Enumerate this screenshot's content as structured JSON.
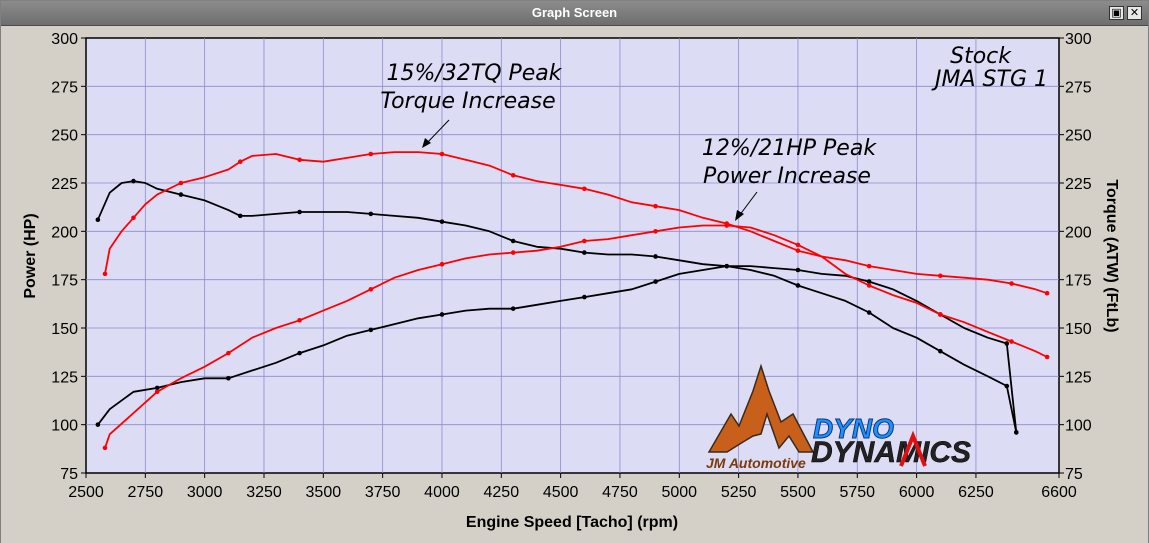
{
  "window": {
    "title": "Graph Screen",
    "restore_glyph": "▣",
    "close_glyph": "✕"
  },
  "logos": {
    "jm_text": "JM Automotive",
    "dyno_text": "DYNO",
    "dynamics_text": "DYNAMICS"
  },
  "chart_data": {
    "type": "line",
    "xlabel": "Engine Speed [Tacho] (rpm)",
    "ylabel_left": "Power (HP)",
    "ylabel_right": "Torque (ATW) (FtLb)",
    "xlim": [
      2500,
      6600
    ],
    "ylim": [
      75,
      300
    ],
    "x_ticks": [
      2500,
      2750,
      3000,
      3250,
      3500,
      3750,
      4000,
      4250,
      4500,
      4750,
      5000,
      5250,
      5500,
      5750,
      6000,
      6250,
      6600
    ],
    "y_ticks": [
      75,
      100,
      125,
      150,
      175,
      200,
      225,
      250,
      275,
      300
    ],
    "grid": true,
    "background": "#dcdcf4",
    "legend": {
      "position": "top-right",
      "entries": [
        {
          "label": "Stock",
          "color": "#000000"
        },
        {
          "label": "JMA STG 1",
          "color": "#ff0000"
        }
      ]
    },
    "series": [
      {
        "name": "Stock",
        "measure": "Power (HP)",
        "color": "#000000",
        "x": [
          2550,
          2600,
          2700,
          2800,
          2900,
          3000,
          3100,
          3200,
          3300,
          3400,
          3500,
          3600,
          3700,
          3800,
          3900,
          4000,
          4100,
          4200,
          4300,
          4400,
          4500,
          4600,
          4700,
          4800,
          4900,
          5000,
          5100,
          5200,
          5300,
          5400,
          5500,
          5600,
          5700,
          5800,
          5900,
          6000,
          6100,
          6200,
          6300,
          6380,
          6420
        ],
        "values": [
          100,
          108,
          117,
          119,
          122,
          124,
          124,
          128,
          132,
          137,
          141,
          146,
          149,
          152,
          155,
          157,
          159,
          160,
          160,
          162,
          164,
          166,
          168,
          170,
          174,
          178,
          180,
          182,
          182,
          181,
          180,
          178,
          177,
          174,
          170,
          164,
          157,
          150,
          145,
          142,
          96
        ]
      },
      {
        "name": "Stock",
        "measure": "Torque (FtLb)",
        "color": "#000000",
        "x": [
          2550,
          2600,
          2650,
          2700,
          2750,
          2800,
          2900,
          3000,
          3100,
          3150,
          3200,
          3300,
          3400,
          3500,
          3600,
          3700,
          3800,
          3900,
          4000,
          4100,
          4200,
          4300,
          4400,
          4500,
          4600,
          4700,
          4800,
          4900,
          5000,
          5100,
          5200,
          5300,
          5400,
          5500,
          5600,
          5700,
          5800,
          5900,
          6000,
          6100,
          6200,
          6300,
          6380,
          6420
        ],
        "values": [
          206,
          220,
          225,
          226,
          225,
          222,
          219,
          216,
          211,
          208,
          208,
          209,
          210,
          210,
          210,
          209,
          208,
          207,
          205,
          203,
          200,
          195,
          192,
          191,
          189,
          188,
          188,
          187,
          185,
          183,
          182,
          180,
          177,
          172,
          168,
          164,
          158,
          150,
          145,
          138,
          131,
          125,
          120,
          96
        ]
      },
      {
        "name": "JMA STG 1",
        "measure": "Power (HP)",
        "color": "#ff0000",
        "x": [
          2580,
          2600,
          2700,
          2800,
          2900,
          3000,
          3100,
          3200,
          3300,
          3400,
          3500,
          3600,
          3700,
          3800,
          3900,
          4000,
          4100,
          4200,
          4300,
          4400,
          4500,
          4600,
          4700,
          4800,
          4900,
          5000,
          5100,
          5200,
          5300,
          5400,
          5500,
          5600,
          5700,
          5800,
          5900,
          6000,
          6100,
          6200,
          6300,
          6400,
          6500,
          6550
        ],
        "values": [
          88,
          95,
          106,
          117,
          124,
          130,
          137,
          145,
          150,
          154,
          159,
          164,
          170,
          176,
          180,
          183,
          186,
          188,
          189,
          190,
          192,
          195,
          196,
          198,
          200,
          202,
          203,
          203,
          202,
          198,
          193,
          187,
          178,
          172,
          167,
          163,
          157,
          153,
          148,
          143,
          138,
          135
        ]
      },
      {
        "name": "JMA STG 1",
        "measure": "Torque (FtLb)",
        "color": "#ff0000",
        "x": [
          2580,
          2600,
          2650,
          2700,
          2750,
          2800,
          2900,
          3000,
          3100,
          3150,
          3200,
          3300,
          3400,
          3500,
          3600,
          3700,
          3800,
          3900,
          4000,
          4100,
          4200,
          4300,
          4400,
          4500,
          4600,
          4700,
          4800,
          4900,
          5000,
          5100,
          5200,
          5300,
          5400,
          5500,
          5600,
          5700,
          5800,
          5900,
          6000,
          6100,
          6200,
          6300,
          6400,
          6500,
          6550
        ],
        "values": [
          178,
          191,
          200,
          207,
          214,
          219,
          225,
          228,
          232,
          236,
          239,
          240,
          237,
          236,
          238,
          240,
          241,
          241,
          240,
          237,
          234,
          229,
          226,
          224,
          222,
          219,
          215,
          213,
          211,
          207,
          204,
          200,
          195,
          190,
          187,
          185,
          182,
          180,
          178,
          177,
          176,
          175,
          173,
          170,
          168
        ]
      }
    ],
    "annotations": [
      {
        "lines": [
          "15%/32TQ Peak",
          "Torque Increase"
        ],
        "target": {
          "x": 3880,
          "y": 241
        }
      },
      {
        "lines": [
          "12%/21HP Peak",
          "Power Increase"
        ],
        "target": {
          "x": 5250,
          "y": 203
        }
      }
    ]
  }
}
